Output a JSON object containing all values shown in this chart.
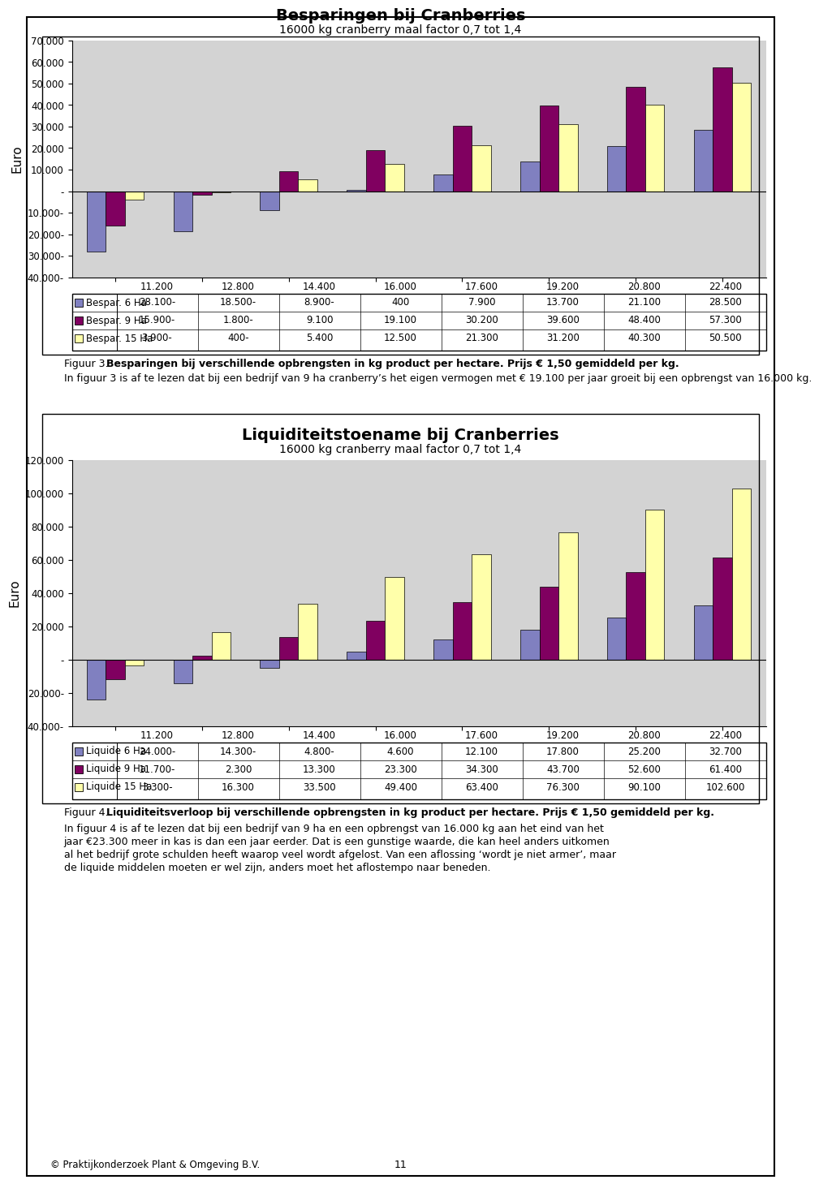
{
  "chart1": {
    "title": "Besparingen bij Cranberries",
    "subtitle": "16000 kg cranberry maal factor 0,7 tot 1,4",
    "ylabel": "Euro",
    "categories": [
      "11.200",
      "12.800",
      "14.400",
      "16.000",
      "17.600",
      "19.200",
      "20.800",
      "22.400"
    ],
    "series": [
      {
        "label": "Bespar. 6 Ha",
        "color": "#8080C0",
        "values": [
          -28100,
          -18500,
          -8900,
          400,
          7900,
          13700,
          21100,
          28500
        ]
      },
      {
        "label": "Bespar. 9 Ha",
        "color": "#800060",
        "values": [
          -15900,
          -1800,
          9100,
          19100,
          30200,
          39600,
          48400,
          57300
        ]
      },
      {
        "label": "Bespar. 15 Ha",
        "color": "#FFFFAA",
        "values": [
          -3900,
          -400,
          5400,
          12500,
          21300,
          31200,
          40300,
          50500
        ]
      }
    ],
    "ylim": [
      -40000,
      70000
    ],
    "yticks": [
      -40000,
      -30000,
      -20000,
      -10000,
      0,
      10000,
      20000,
      30000,
      40000,
      50000,
      60000,
      70000
    ],
    "ytick_labels": [
      "40.000-",
      "30.000-",
      "20.000-",
      "10.000-",
      "-",
      "10.000",
      "20.000",
      "30.000",
      "40.000",
      "50.000",
      "60.000",
      "70.000"
    ],
    "table_rows": [
      [
        "Bespar. 6 Ha",
        "28.100-",
        "18.500-",
        "8.900-",
        "400",
        "7.900",
        "13.700",
        "21.100",
        "28.500"
      ],
      [
        "Bespar. 9 Ha",
        "15.900-",
        "1.800-",
        "9.100",
        "19.100",
        "30.200",
        "39.600",
        "48.400",
        "57.300"
      ],
      [
        "Bespar. 15 Ha",
        "3.900-",
        "400-",
        "5.400",
        "12.500",
        "21.300",
        "31.200",
        "40.300",
        "50.500"
      ]
    ],
    "legend_colors": [
      "#8080C0",
      "#800060",
      "#FFFFAA"
    ]
  },
  "chart2": {
    "title": "Liquiditeitstoename bij Cranberries",
    "subtitle": "16000 kg cranberry maal factor 0,7 tot 1,4",
    "ylabel": "Euro",
    "categories": [
      "11.200",
      "12.800",
      "14.400",
      "16.000",
      "17.600",
      "19.200",
      "20.800",
      "22.400"
    ],
    "series": [
      {
        "label": "Liquide 6 Ha",
        "color": "#8080C0",
        "values": [
          -24000,
          -14300,
          -4800,
          4600,
          12100,
          17800,
          25200,
          32700
        ]
      },
      {
        "label": "Liquide 9 Ha",
        "color": "#800060",
        "values": [
          -11700,
          2300,
          13300,
          23300,
          34300,
          43700,
          52600,
          61400
        ]
      },
      {
        "label": "Liquide 15 Ha",
        "color": "#FFFFAA",
        "values": [
          -3300,
          16300,
          33500,
          49400,
          63400,
          76300,
          90100,
          102600
        ]
      }
    ],
    "ylim": [
      -40000,
      120000
    ],
    "yticks": [
      -40000,
      -20000,
      0,
      20000,
      40000,
      60000,
      80000,
      100000,
      120000
    ],
    "ytick_labels": [
      "40.000-",
      "20.000-",
      "-",
      "20.000",
      "40.000",
      "60.000",
      "80.000",
      "100.000",
      "120.000"
    ],
    "table_rows": [
      [
        "Liquide 6 Ha",
        "24.000-",
        "14.300-",
        "4.800-",
        "4.600",
        "12.100",
        "17.800",
        "25.200",
        "32.700"
      ],
      [
        "Liquide 9 Ha",
        "11.700-",
        "2.300",
        "13.300",
        "23.300",
        "34.300",
        "43.700",
        "52.600",
        "61.400"
      ],
      [
        "Liquide 15 Ha",
        "3.300-",
        "16.300",
        "33.500",
        "49.400",
        "63.400",
        "76.300",
        "90.100",
        "102.600"
      ]
    ],
    "legend_colors": [
      "#8080C0",
      "#800060",
      "#FFFFAA"
    ]
  },
  "figuur3_normal": "Figuur 3. ",
  "figuur3_bold": "Besparingen bij verschillende opbrengsten in kg product per hectare. Prijs € 1,50 gemiddeld per kg.",
  "figuur3_body": "In figuur 3 is af te lezen dat bij een bedrijf van 9 ha cranberry’s het eigen vermogen met € 19.100 per jaar groeit bij een opbrengst van 16.000 kg.",
  "figuur4_normal": "Figuur 4. ",
  "figuur4_bold": "Liquiditeitsverloop bij verschillende opbrengsten in kg product per hectare. Prijs € 1,50 gemiddeld per kg.",
  "figuur4_body_line1": "In figuur 4 is af te lezen dat bij een bedrijf van 9 ha en een opbrengst van 16.000 kg aan het eind van het",
  "figuur4_body_line2": "jaar €23.300 meer in kas is dan een jaar eerder. Dat is een gunstige waarde, die kan heel anders uitkomen",
  "figuur4_body_line3": "al het bedrijf grote schulden heeft waarop veel wordt afgelost. Van een aflossing ‘wordt je niet armer’, maar",
  "figuur4_body_line4": "de liquide middelen moeten er wel zijn, anders moet het aflostempo naar beneden.",
  "footer_text": "© Praktijkonderzoek Plant & Omgeving B.V.",
  "page_number": "11",
  "plot_bg_color": "#D3D3D3",
  "bar_edge_color": "#000000"
}
